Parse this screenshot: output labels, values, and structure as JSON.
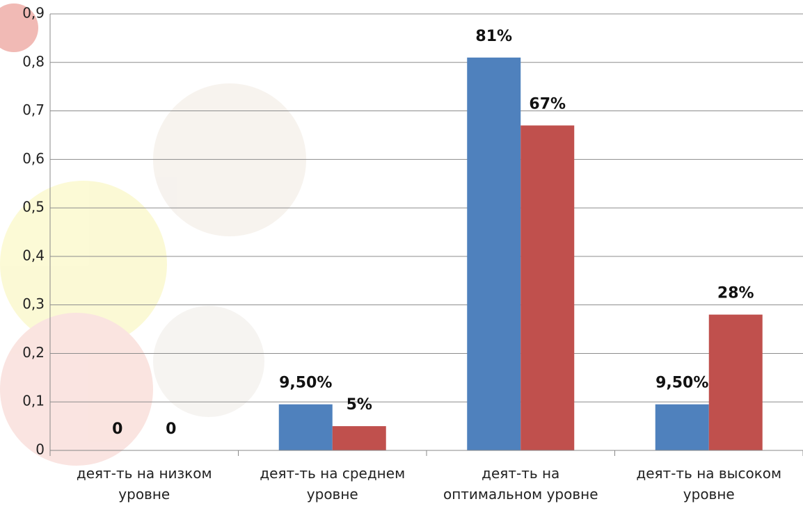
{
  "chart_data": {
    "type": "bar",
    "categories": [
      "деят-ть на низком уровне",
      "деят-ть на среднем уровне",
      "деят-ть на оптимальном уровне",
      "деят-ть на высоком уровне"
    ],
    "series": [
      {
        "color": "#4f81bd",
        "values": [
          0,
          0.095,
          0.81,
          0.095
        ],
        "value_labels": [
          "0",
          "9,50%",
          "81%",
          "9,50%"
        ]
      },
      {
        "color": "#c0504d",
        "values": [
          0,
          0.05,
          0.67,
          0.28
        ],
        "value_labels": [
          "0",
          "5%",
          "67%",
          "28%"
        ]
      }
    ],
    "ylim": [
      0,
      0.9
    ],
    "yticks": [
      0,
      {
        "value": 0.1,
        "label": "0,1"
      },
      {
        "value": 0.2,
        "label": "0,2"
      },
      {
        "value": 0.3,
        "label": "0,3"
      },
      {
        "value": 0.4,
        "label": "0,4"
      },
      {
        "value": 0.5,
        "label": "0,5"
      },
      {
        "value": 0.6,
        "label": "0,6"
      },
      {
        "value": 0.7,
        "label": "0,7"
      },
      {
        "value": 0.8,
        "label": "0,8"
      },
      {
        "value": 0.9,
        "label": "0,9"
      }
    ],
    "grid": true
  }
}
